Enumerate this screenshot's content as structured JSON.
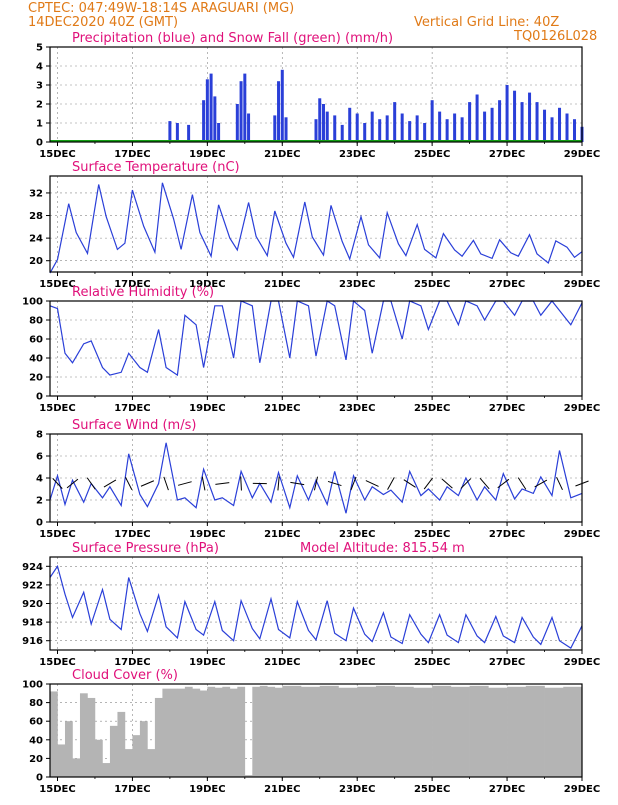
{
  "header": {
    "line1": "CPTEC:   047:49W-18:14S   ARAGUARI (MG)",
    "line2": "14DEC2020 40Z (GMT)",
    "grid_note": "Vertical Grid Line: 40Z",
    "code": "TQ0126L028"
  },
  "x_labels": [
    "15DEC",
    "17DEC",
    "19DEC",
    "21DEC",
    "23DEC",
    "25DEC",
    "27DEC",
    "29DEC"
  ],
  "colors": {
    "header": "#e07a17",
    "title": "#e0107a",
    "line": "#2a3fd8",
    "bar": "#2a3fd8",
    "snow": "#14a014",
    "cloud": "#b4b4b4",
    "grid": "#888888"
  },
  "chart_data": [
    {
      "type": "bar",
      "title": "Precipitation (blue) and Snow Fall (green) (mm/h)",
      "ylim": [
        0,
        5
      ],
      "yticks": [
        0,
        1,
        2,
        3,
        4,
        5
      ],
      "x_days": [
        14.8,
        29.0
      ],
      "series": [
        {
          "name": "Precipitation",
          "x": [
            18.0,
            18.2,
            18.5,
            18.9,
            19.0,
            19.1,
            19.2,
            19.3,
            19.8,
            19.9,
            20.0,
            20.1,
            20.8,
            20.9,
            21.0,
            21.1,
            21.9,
            22.0,
            22.1,
            22.2,
            22.4,
            22.6,
            22.8,
            23.0,
            23.2,
            23.4,
            23.6,
            23.8,
            24.0,
            24.2,
            24.4,
            24.6,
            24.8,
            25.0,
            25.2,
            25.4,
            25.6,
            25.8,
            26.0,
            26.2,
            26.4,
            26.6,
            26.8,
            27.0,
            27.2,
            27.4,
            27.6,
            27.8,
            28.0,
            28.2,
            28.4,
            28.6,
            28.8,
            29.0
          ],
          "values": [
            1.1,
            1.0,
            0.9,
            2.2,
            3.3,
            3.6,
            2.4,
            1.0,
            2.0,
            3.2,
            3.6,
            1.5,
            1.4,
            3.2,
            3.8,
            1.3,
            1.2,
            2.3,
            2.0,
            1.6,
            1.4,
            0.9,
            1.8,
            1.5,
            1.0,
            1.6,
            1.2,
            1.4,
            2.1,
            1.5,
            1.1,
            1.4,
            1.0,
            2.2,
            1.6,
            1.2,
            1.5,
            1.3,
            2.1,
            2.5,
            1.6,
            1.8,
            2.2,
            3.0,
            2.7,
            2.1,
            2.6,
            2.1,
            1.7,
            1.3,
            1.8,
            1.5,
            1.2,
            0.8
          ]
        },
        {
          "name": "Snow Fall",
          "x": [
            14.8,
            29.0
          ],
          "values": [
            0,
            0
          ]
        }
      ]
    },
    {
      "type": "line",
      "title": "Surface Temperature (nC)",
      "ylim": [
        18,
        35
      ],
      "yticks": [
        20,
        24,
        28,
        32
      ],
      "x_days": [
        14.8,
        29.0
      ],
      "series": [
        {
          "name": "Surface Temperature",
          "x": [
            14.8,
            15.0,
            15.3,
            15.5,
            15.8,
            16.1,
            16.3,
            16.6,
            16.8,
            17.0,
            17.3,
            17.6,
            17.8,
            18.1,
            18.3,
            18.6,
            18.8,
            19.1,
            19.3,
            19.6,
            19.8,
            20.1,
            20.3,
            20.6,
            20.8,
            21.1,
            21.3,
            21.6,
            21.8,
            22.1,
            22.3,
            22.6,
            22.8,
            23.1,
            23.3,
            23.6,
            23.8,
            24.1,
            24.3,
            24.6,
            24.8,
            25.1,
            25.3,
            25.6,
            25.8,
            26.1,
            26.3,
            26.6,
            26.8,
            27.1,
            27.3,
            27.6,
            27.8,
            28.1,
            28.3,
            28.6,
            28.8,
            29.0
          ],
          "values": [
            17.8,
            20.2,
            30.1,
            25.0,
            21.3,
            33.5,
            27.8,
            22.0,
            23.1,
            32.5,
            26.1,
            21.5,
            33.8,
            27.4,
            22.0,
            31.7,
            25.0,
            20.8,
            29.9,
            24.0,
            21.9,
            30.3,
            24.3,
            20.9,
            28.8,
            23.1,
            20.6,
            30.4,
            24.2,
            21.0,
            29.8,
            23.4,
            20.3,
            27.8,
            22.8,
            20.5,
            28.5,
            23.0,
            20.9,
            26.4,
            22.0,
            20.5,
            24.8,
            21.9,
            20.8,
            23.6,
            21.2,
            20.4,
            23.7,
            21.4,
            20.8,
            24.6,
            21.2,
            19.6,
            23.5,
            22.4,
            20.6,
            21.6
          ]
        }
      ]
    },
    {
      "type": "line",
      "title": "Relative Humidity (%)",
      "ylim": [
        0,
        100
      ],
      "yticks": [
        0,
        20,
        40,
        60,
        80,
        100
      ],
      "x_days": [
        14.8,
        29.0
      ],
      "series": [
        {
          "name": "Relative Humidity",
          "x": [
            14.8,
            15.0,
            15.2,
            15.4,
            15.7,
            15.9,
            16.2,
            16.4,
            16.7,
            16.9,
            17.2,
            17.4,
            17.7,
            17.9,
            18.2,
            18.4,
            18.7,
            18.9,
            19.2,
            19.4,
            19.7,
            19.9,
            20.2,
            20.4,
            20.7,
            20.9,
            21.2,
            21.4,
            21.7,
            21.9,
            22.2,
            22.4,
            22.7,
            22.9,
            23.2,
            23.4,
            23.7,
            23.9,
            24.2,
            24.4,
            24.7,
            24.9,
            25.2,
            25.4,
            25.7,
            25.9,
            26.2,
            26.4,
            26.7,
            26.9,
            27.2,
            27.4,
            27.7,
            27.9,
            28.2,
            28.4,
            28.7,
            29.0
          ],
          "values": [
            95,
            92,
            45,
            35,
            55,
            58,
            30,
            22,
            25,
            45,
            30,
            25,
            70,
            30,
            22,
            85,
            75,
            30,
            95,
            95,
            40,
            100,
            95,
            35,
            100,
            100,
            40,
            100,
            95,
            42,
            100,
            95,
            38,
            100,
            90,
            45,
            100,
            100,
            60,
            100,
            95,
            70,
            100,
            100,
            75,
            100,
            95,
            80,
            100,
            100,
            85,
            100,
            100,
            85,
            100,
            90,
            75,
            98
          ]
        }
      ]
    },
    {
      "type": "line",
      "title": "Surface Wind (m/s)",
      "ylim": [
        0,
        8
      ],
      "yticks": [
        0,
        2,
        4,
        6,
        8
      ],
      "x_days": [
        14.8,
        29.0
      ],
      "series": [
        {
          "name": "Surface Wind",
          "x": [
            14.8,
            15.0,
            15.2,
            15.4,
            15.7,
            15.9,
            16.2,
            16.4,
            16.7,
            16.9,
            17.2,
            17.4,
            17.7,
            17.9,
            18.2,
            18.4,
            18.7,
            18.9,
            19.2,
            19.4,
            19.7,
            19.9,
            20.2,
            20.4,
            20.7,
            20.9,
            21.2,
            21.4,
            21.7,
            21.9,
            22.2,
            22.4,
            22.7,
            22.9,
            23.2,
            23.4,
            23.7,
            23.9,
            24.2,
            24.4,
            24.7,
            24.9,
            25.2,
            25.4,
            25.7,
            25.9,
            26.2,
            26.4,
            26.7,
            26.9,
            27.2,
            27.4,
            27.7,
            27.9,
            28.2,
            28.4,
            28.7,
            29.0
          ],
          "values": [
            2.0,
            4.2,
            1.6,
            3.8,
            1.8,
            3.5,
            2.2,
            3.2,
            1.5,
            6.2,
            2.5,
            1.4,
            3.5,
            7.2,
            2.0,
            2.2,
            1.3,
            4.8,
            2.0,
            2.2,
            1.5,
            4.6,
            2.2,
            3.5,
            1.8,
            4.5,
            1.3,
            4.2,
            2.0,
            3.8,
            1.6,
            4.6,
            0.8,
            4.2,
            2.0,
            3.2,
            2.5,
            2.9,
            1.8,
            4.6,
            2.4,
            3.0,
            2.0,
            3.2,
            2.4,
            4.0,
            2.0,
            3.2,
            2.0,
            4.4,
            2.1,
            3.0,
            2.6,
            4.1,
            2.4,
            6.5,
            2.2,
            2.6
          ]
        }
      ]
    },
    {
      "type": "line",
      "title": "Surface Pressure (hPa)",
      "annotation": "Model Altitude: 815.54 m",
      "ylim": [
        915,
        925
      ],
      "yticks": [
        916,
        918,
        920,
        922,
        924
      ],
      "x_days": [
        14.8,
        29.0
      ],
      "series": [
        {
          "name": "Surface Pressure",
          "x": [
            14.8,
            15.0,
            15.2,
            15.4,
            15.7,
            15.9,
            16.2,
            16.4,
            16.7,
            16.9,
            17.2,
            17.4,
            17.7,
            17.9,
            18.2,
            18.4,
            18.7,
            18.9,
            19.2,
            19.4,
            19.7,
            19.9,
            20.2,
            20.4,
            20.7,
            20.9,
            21.2,
            21.4,
            21.7,
            21.9,
            22.2,
            22.4,
            22.7,
            22.9,
            23.2,
            23.4,
            23.7,
            23.9,
            24.2,
            24.4,
            24.7,
            24.9,
            25.2,
            25.4,
            25.7,
            25.9,
            26.2,
            26.4,
            26.7,
            26.9,
            27.2,
            27.4,
            27.7,
            27.9,
            28.2,
            28.4,
            28.7,
            29.0
          ],
          "values": [
            922.8,
            924.0,
            921.0,
            918.5,
            921.2,
            917.8,
            921.5,
            918.3,
            917.2,
            922.8,
            918.9,
            917.0,
            920.9,
            917.5,
            916.3,
            920.2,
            917.2,
            916.6,
            920.2,
            917.1,
            916.0,
            920.3,
            917.3,
            916.2,
            920.5,
            917.2,
            916.3,
            920.2,
            917.1,
            916.1,
            920.3,
            916.8,
            916.0,
            919.5,
            916.7,
            915.9,
            919.0,
            916.4,
            915.7,
            918.8,
            916.7,
            915.8,
            918.8,
            916.6,
            915.8,
            918.8,
            916.5,
            915.8,
            918.6,
            916.5,
            915.8,
            918.5,
            916.4,
            915.6,
            918.5,
            916.0,
            915.2,
            917.6
          ]
        }
      ]
    },
    {
      "type": "bar",
      "title": "Cloud Cover (%)",
      "ylim": [
        0,
        100
      ],
      "yticks": [
        0,
        20,
        40,
        60,
        80,
        100
      ],
      "x_days": [
        14.8,
        29.0
      ],
      "series": [
        {
          "name": "Cloud Cover",
          "x": [
            14.8,
            15.0,
            15.2,
            15.4,
            15.6,
            15.8,
            16.0,
            16.2,
            16.4,
            16.6,
            16.8,
            17.0,
            17.2,
            17.4,
            17.6,
            17.8,
            18.0,
            18.2,
            18.4,
            18.6,
            18.8,
            19.0,
            19.2,
            19.4,
            19.6,
            19.8,
            20.0,
            20.2,
            20.4,
            20.6,
            20.8,
            21.0,
            21.5,
            22.0,
            22.5,
            23.0,
            23.5,
            24.0,
            24.5,
            25.0,
            25.5,
            26.0,
            26.5,
            27.0,
            27.5,
            28.0,
            28.5,
            29.0
          ],
          "values": [
            92,
            35,
            60,
            20,
            90,
            85,
            40,
            15,
            55,
            70,
            30,
            45,
            60,
            30,
            85,
            95,
            95,
            95,
            97,
            95,
            93,
            97,
            96,
            97,
            95,
            97,
            2,
            97,
            98,
            97,
            96,
            98,
            97,
            98,
            96,
            97,
            98,
            97,
            96,
            98,
            97,
            98,
            96,
            97,
            98,
            96,
            97,
            97
          ]
        }
      ]
    }
  ]
}
